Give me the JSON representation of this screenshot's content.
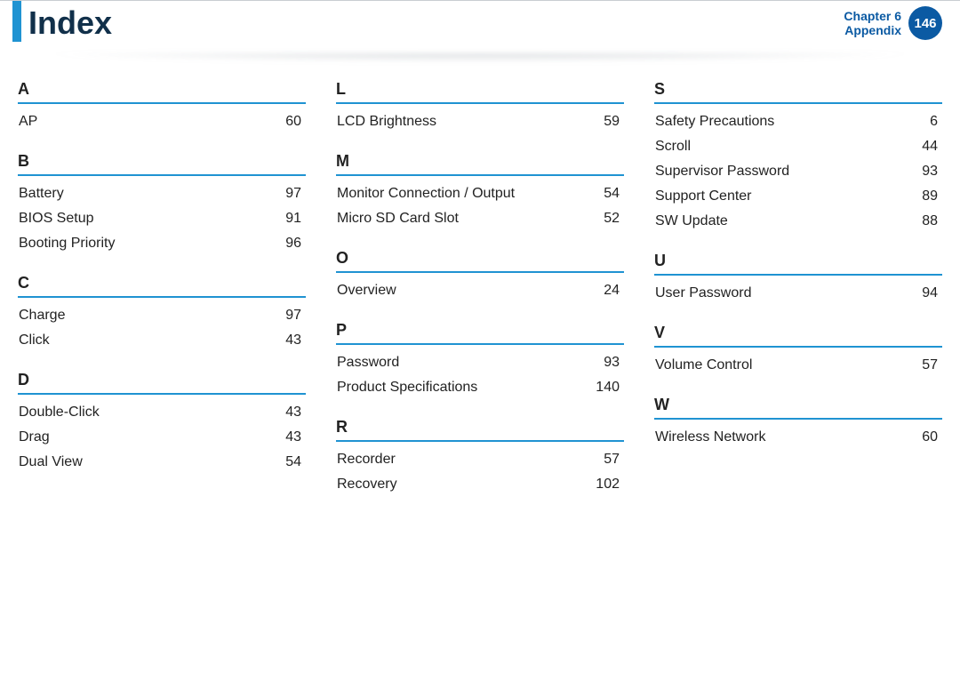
{
  "header": {
    "title": "Index",
    "chapter_line1": "Chapter 6",
    "chapter_line2": "Appendix",
    "page_number": "146",
    "accent_color": "#1f93d2",
    "badge_color": "#0b5aa3",
    "title_color": "#11304a"
  },
  "columns": [
    {
      "sections": [
        {
          "letter": "A",
          "entries": [
            {
              "term": "AP",
              "page": "60"
            }
          ]
        },
        {
          "letter": "B",
          "entries": [
            {
              "term": "Battery",
              "page": "97"
            },
            {
              "term": "BIOS Setup",
              "page": "91"
            },
            {
              "term": "Booting Priority",
              "page": "96"
            }
          ]
        },
        {
          "letter": "C",
          "entries": [
            {
              "term": "Charge",
              "page": "97"
            },
            {
              "term": "Click",
              "page": "43"
            }
          ]
        },
        {
          "letter": "D",
          "entries": [
            {
              "term": "Double-Click",
              "page": "43"
            },
            {
              "term": "Drag",
              "page": "43"
            },
            {
              "term": "Dual View",
              "page": "54"
            }
          ]
        }
      ]
    },
    {
      "sections": [
        {
          "letter": "L",
          "entries": [
            {
              "term": "LCD Brightness",
              "page": "59"
            }
          ]
        },
        {
          "letter": "M",
          "entries": [
            {
              "term": "Monitor Connection / Output",
              "page": "54"
            },
            {
              "term": "Micro SD Card Slot",
              "page": "52"
            }
          ]
        },
        {
          "letter": "O",
          "entries": [
            {
              "term": "Overview",
              "page": "24"
            }
          ]
        },
        {
          "letter": "P",
          "entries": [
            {
              "term": "Password",
              "page": "93"
            },
            {
              "term": "Product Specifications",
              "page": "140"
            }
          ]
        },
        {
          "letter": "R",
          "entries": [
            {
              "term": "Recorder",
              "page": "57"
            },
            {
              "term": "Recovery",
              "page": "102"
            }
          ]
        }
      ]
    },
    {
      "sections": [
        {
          "letter": "S",
          "entries": [
            {
              "term": "Safety Precautions",
              "page": "6"
            },
            {
              "term": "Scroll",
              "page": "44"
            },
            {
              "term": "Supervisor Password",
              "page": "93"
            },
            {
              "term": "Support Center",
              "page": "89"
            },
            {
              "term": "SW Update",
              "page": "88"
            }
          ]
        },
        {
          "letter": "U",
          "entries": [
            {
              "term": "User Password",
              "page": "94"
            }
          ]
        },
        {
          "letter": "V",
          "entries": [
            {
              "term": "Volume Control",
              "page": "57"
            }
          ]
        },
        {
          "letter": "W",
          "entries": [
            {
              "term": "Wireless Network",
              "page": "60"
            }
          ]
        }
      ]
    }
  ]
}
